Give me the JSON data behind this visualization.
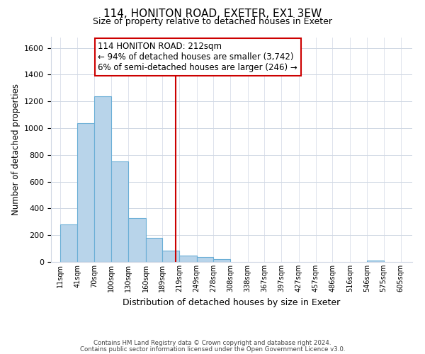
{
  "title": "114, HONITON ROAD, EXETER, EX1 3EW",
  "subtitle": "Size of property relative to detached houses in Exeter",
  "xlabel": "Distribution of detached houses by size in Exeter",
  "ylabel": "Number of detached properties",
  "bar_left_edges": [
    11,
    41,
    70,
    100,
    130,
    160,
    189,
    219,
    249,
    278,
    308,
    338,
    367,
    397,
    427,
    457,
    486,
    516,
    546,
    575
  ],
  "bar_heights": [
    280,
    1035,
    1240,
    750,
    330,
    180,
    85,
    50,
    38,
    20,
    0,
    0,
    0,
    0,
    0,
    0,
    0,
    0,
    10,
    0
  ],
  "bin_widths": [
    30,
    29,
    30,
    30,
    30,
    29,
    30,
    30,
    29,
    30,
    30,
    29,
    30,
    30,
    29,
    30,
    30,
    29,
    30,
    30
  ],
  "bar_color": "#b8d4ea",
  "bar_edge_color": "#6aaed6",
  "vline_x": 212,
  "vline_color": "#cc0000",
  "annotation_title": "114 HONITON ROAD: 212sqm",
  "annotation_line1": "← 94% of detached houses are smaller (3,742)",
  "annotation_line2": "6% of semi-detached houses are larger (246) →",
  "tick_labels": [
    "11sqm",
    "41sqm",
    "70sqm",
    "100sqm",
    "130sqm",
    "160sqm",
    "189sqm",
    "219sqm",
    "249sqm",
    "278sqm",
    "308sqm",
    "338sqm",
    "367sqm",
    "397sqm",
    "427sqm",
    "457sqm",
    "486sqm",
    "516sqm",
    "546sqm",
    "575sqm",
    "605sqm"
  ],
  "tick_positions": [
    11,
    41,
    70,
    100,
    130,
    160,
    189,
    219,
    249,
    278,
    308,
    338,
    367,
    397,
    427,
    457,
    486,
    516,
    546,
    575,
    605
  ],
  "yticks": [
    0,
    200,
    400,
    600,
    800,
    1000,
    1200,
    1400,
    1600
  ],
  "ylim": [
    0,
    1680
  ],
  "xlim": [
    -5,
    625
  ],
  "footnote1": "Contains HM Land Registry data © Crown copyright and database right 2024.",
  "footnote2": "Contains public sector information licensed under the Open Government Licence v3.0.",
  "background_color": "#ffffff",
  "grid_color": "#d0d8e4",
  "title_fontsize": 11,
  "subtitle_fontsize": 9
}
